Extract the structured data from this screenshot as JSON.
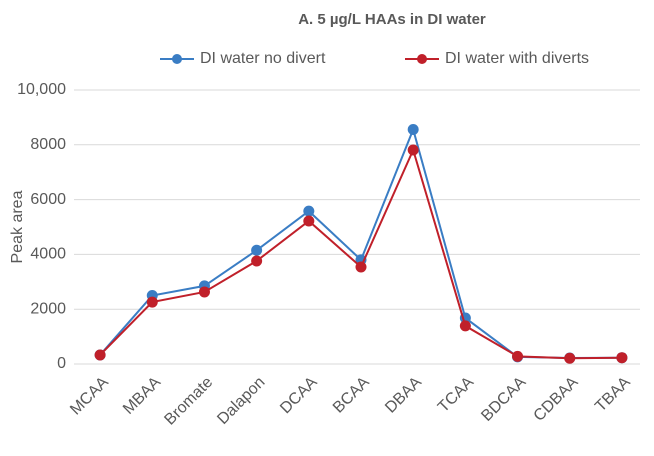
{
  "chart_data": {
    "type": "line",
    "title": "A. 5 µg/L HAAs in DI water",
    "y_label": "Peak area",
    "categories": [
      "MCAA",
      "MBAA",
      "Bromate",
      "Dalapon",
      "DCAA",
      "BCAA",
      "DBAA",
      "TCAA",
      "BDCAA",
      "CDBAA",
      "TBAA"
    ],
    "series": [
      {
        "name": "DI water no divert",
        "color": "#3a7dc4",
        "values": [
          330,
          2500,
          2850,
          4150,
          5580,
          3800,
          8560,
          1680,
          260,
          220,
          230
        ]
      },
      {
        "name": "DI water with diverts",
        "color": "#c0202a",
        "values": [
          330,
          2260,
          2630,
          3760,
          5220,
          3540,
          7810,
          1390,
          280,
          210,
          230
        ]
      }
    ],
    "ylim": [
      0,
      10000
    ],
    "yticks": [
      0,
      2000,
      4000,
      6000,
      8000,
      {
        "value": 10000,
        "label": "10,000"
      }
    ],
    "grid": true
  }
}
